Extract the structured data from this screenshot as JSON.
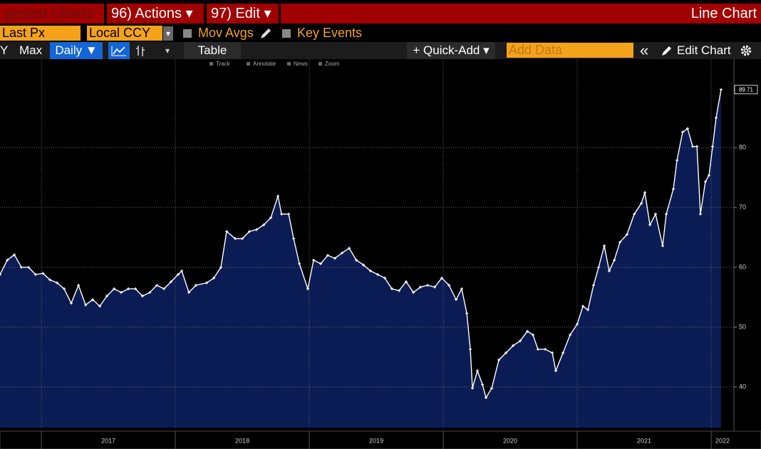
{
  "ui": {
    "tabs": [
      "gested Charts",
      "96) Actions ▾",
      "97) Edit ▾"
    ],
    "window_title": "Line Chart",
    "field": "Last Px",
    "currency": "Local CCY",
    "dropdown": "▾",
    "options": [
      "Mov Avgs",
      "Key Events"
    ],
    "toolbar": [
      "Y",
      "Max",
      "Daily ▼",
      "Table",
      "+ Quick-Add ▾",
      "Add Data",
      "«",
      "Edit Chart"
    ],
    "chart_tools": [
      "Track",
      "Annotate",
      "News",
      "Zoom"
    ]
  },
  "chart_data": {
    "type": "line",
    "x": [
      2016.691,
      2016.745,
      2016.798,
      2016.851,
      2016.904,
      2016.957,
      2017.011,
      2017.064,
      2017.117,
      2017.17,
      2017.223,
      2017.277,
      2017.33,
      2017.383,
      2017.436,
      2017.489,
      2017.543,
      2017.596,
      2017.649,
      2017.702,
      2017.755,
      2017.809,
      2017.862,
      2017.915,
      2017.968,
      2018.021,
      2018.048,
      2018.101,
      2018.154,
      2018.234,
      2018.287,
      2018.34,
      2018.383,
      2018.447,
      2018.5,
      2018.553,
      2018.606,
      2018.66,
      2018.713,
      2018.766,
      2018.793,
      2018.846,
      2018.883,
      2018.926,
      2018.989,
      2019.032,
      2019.085,
      2019.138,
      2019.191,
      2019.245,
      2019.298,
      2019.351,
      2019.404,
      2019.457,
      2019.511,
      2019.564,
      2019.617,
      2019.67,
      2019.723,
      2019.777,
      2019.83,
      2019.883,
      2019.936,
      2019.989,
      2020.043,
      2020.096,
      2020.138,
      2020.176,
      2020.202,
      2020.218,
      2020.255,
      2020.293,
      2020.319,
      2020.362,
      2020.415,
      2020.468,
      2020.521,
      2020.574,
      2020.628,
      2020.67,
      2020.707,
      2020.761,
      2020.814,
      2020.84,
      2020.894,
      2020.947,
      2021.0,
      2021.043,
      2021.08,
      2021.122,
      2021.16,
      2021.202,
      2021.239,
      2021.277,
      2021.319,
      2021.372,
      2021.426,
      2021.479,
      2021.505,
      2021.543,
      2021.585,
      2021.638,
      2021.665,
      2021.718,
      2021.745,
      2021.787,
      2021.824,
      2021.862,
      2021.894,
      2021.92,
      2021.957,
      2021.984,
      2022.011,
      2022.037,
      2022.074
    ],
    "values": [
      58.8,
      61.2,
      62.1,
      60,
      60,
      58.8,
      59,
      57.9,
      57.4,
      56.4,
      54,
      57,
      53.7,
      54.6,
      53.5,
      55.2,
      56.4,
      55.8,
      56.4,
      56.4,
      55.2,
      55.8,
      57,
      56.4,
      57.6,
      58.8,
      59.4,
      55.8,
      57,
      57.4,
      58.2,
      60,
      66,
      64.8,
      64.8,
      66,
      66.3,
      67.1,
      68.3,
      71.9,
      68.9,
      68.9,
      64.8,
      60.6,
      56.4,
      61.2,
      60.6,
      62,
      61.5,
      62.4,
      63.2,
      61.2,
      60.4,
      59.4,
      58.8,
      58.2,
      56.4,
      56.1,
      57.6,
      55.8,
      56.7,
      57,
      56.7,
      58.2,
      57,
      54.6,
      56.4,
      52.3,
      46.3,
      39.8,
      42.7,
      40.4,
      38.2,
      39.8,
      44.5,
      45.7,
      46.9,
      47.7,
      49.3,
      48.7,
      46.3,
      46.3,
      45.7,
      42.7,
      45.7,
      48.7,
      50.5,
      53.5,
      52.9,
      57,
      60,
      63.6,
      59.4,
      61.2,
      64.2,
      65.5,
      68.9,
      70.7,
      72.5,
      67.1,
      68.9,
      63.6,
      68.9,
      73.1,
      77.9,
      82.6,
      83.2,
      80.2,
      80.2,
      68.9,
      74.3,
      75.4,
      80.2,
      85,
      89.71
    ],
    "last_value": 89.71,
    "color": "#ffffff",
    "area_color": "#0b1c55",
    "xlim": [
      2016.691,
      2022.17
    ],
    "xticks": [
      2017,
      2018,
      2019,
      2020,
      2021,
      2022
    ],
    "ylim": [
      33.2,
      94.8
    ],
    "yticks": [
      40,
      50,
      60,
      70,
      80
    ],
    "grid": true
  }
}
